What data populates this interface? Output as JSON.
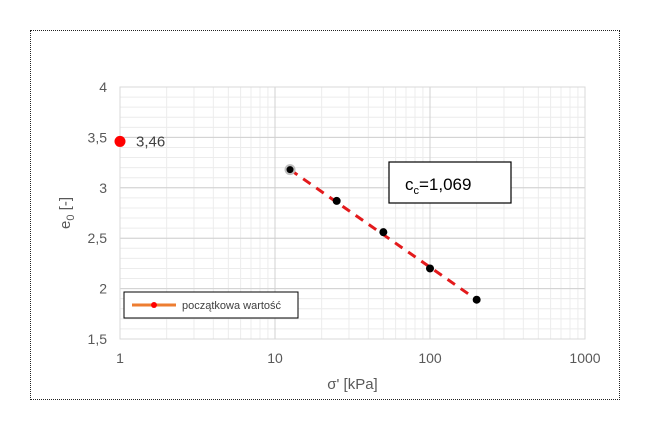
{
  "chart_data": {
    "type": "scatter",
    "x_scale": "log",
    "xlim": [
      1,
      1000
    ],
    "ylim": [
      1.5,
      4
    ],
    "xlabel": "σ' [kPa]",
    "ylabel_main": "e",
    "ylabel_sub": "0",
    "ylabel_rest": " [-]",
    "x_ticks": [
      {
        "value": 1,
        "label": "1"
      },
      {
        "value": 10,
        "label": "10"
      },
      {
        "value": 100,
        "label": "100"
      },
      {
        "value": 1000,
        "label": "1000"
      }
    ],
    "y_ticks": [
      {
        "value": 1.5,
        "label": "1,5"
      },
      {
        "value": 2,
        "label": "2"
      },
      {
        "value": 2.5,
        "label": "2,5"
      },
      {
        "value": 3,
        "label": "3"
      },
      {
        "value": 3.5,
        "label": "3,5"
      },
      {
        "value": 4,
        "label": "4"
      }
    ],
    "grid": true,
    "initial_point": {
      "x": 1,
      "y": 3.46,
      "label": "3,46",
      "color": "#ff0000"
    },
    "series": [
      {
        "name": "początkowa wartość",
        "color": "#000000",
        "points": [
          {
            "x": 12.5,
            "y": 3.18
          },
          {
            "x": 25,
            "y": 2.87
          },
          {
            "x": 50,
            "y": 2.56
          },
          {
            "x": 100,
            "y": 2.2
          },
          {
            "x": 200,
            "y": 1.89
          }
        ]
      }
    ],
    "trendline": {
      "x": [
        12.5,
        200
      ],
      "y": [
        3.18,
        1.89
      ],
      "color": "#e31a1c"
    },
    "annotation": {
      "main": "c",
      "sub": "c",
      "rest": "=1,069"
    },
    "legend": {
      "label": "początkowa wartość",
      "line_color": "#ed7d31",
      "marker_color": "#ff0000"
    }
  }
}
